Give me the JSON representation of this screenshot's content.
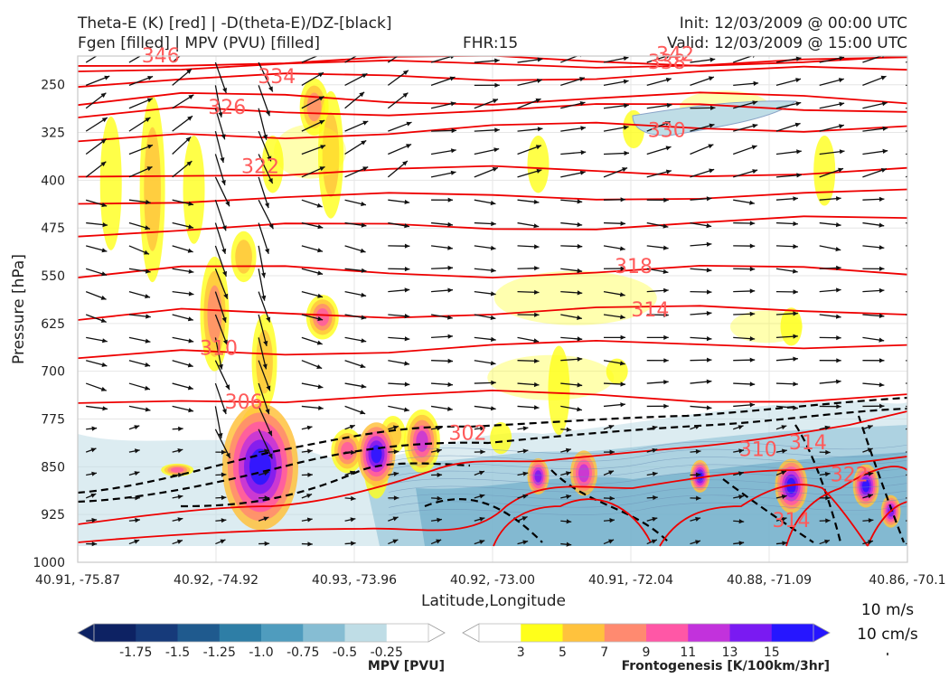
{
  "header": {
    "left_line1": "Theta-E (K) [red] | -D(theta-E)/DZ-[black]",
    "left_line2": "Fgen [filled] | MPV (PVU) [filled]",
    "center": "FHR:15",
    "right_line1": "Init: 12/03/2009 @ 00:00 UTC",
    "right_line2": "Valid: 12/03/2009 @ 15:00 UTC"
  },
  "chart_data": {
    "type": "cross-section",
    "xlabel": "Latitude,Longitude",
    "ylabel": "Pressure [hPa]",
    "x_ticks": [
      "40.91, -75.87",
      "40.92, -74.92",
      "40.93, -73.96",
      "40.92, -73.00",
      "40.91, -72.04",
      "40.88, -71.09",
      "40.86, -70.1"
    ],
    "y_ticks": [
      250,
      325,
      400,
      475,
      550,
      625,
      700,
      775,
      850,
      925,
      1000
    ],
    "ylim": [
      1000,
      205
    ],
    "y_scale": "linear (inverted)",
    "grid": true,
    "theta_e_contours": {
      "color": "#ee0000",
      "levels": [
        306,
        310,
        314,
        318,
        322,
        326,
        330,
        334,
        338,
        342,
        346
      ],
      "labels": [
        {
          "text": "346",
          "x": 0.1,
          "p": 212
        },
        {
          "text": "338",
          "x": 0.71,
          "p": 222
        },
        {
          "text": "342",
          "x": 0.72,
          "p": 210
        },
        {
          "text": "334",
          "x": 0.24,
          "p": 245
        },
        {
          "text": "326",
          "x": 0.18,
          "p": 293
        },
        {
          "text": "330",
          "x": 0.71,
          "p": 329
        },
        {
          "text": "322",
          "x": 0.22,
          "p": 386
        },
        {
          "text": "318",
          "x": 0.67,
          "p": 543
        },
        {
          "text": "314",
          "x": 0.69,
          "p": 611
        },
        {
          "text": "310",
          "x": 0.17,
          "p": 671
        },
        {
          "text": "306",
          "x": 0.2,
          "p": 756
        },
        {
          "text": "302",
          "x": 0.47,
          "p": 805
        },
        {
          "text": "310",
          "x": 0.82,
          "p": 830
        },
        {
          "text": "314",
          "x": 0.88,
          "p": 820
        },
        {
          "text": "314",
          "x": 0.86,
          "p": 942
        },
        {
          "text": "322",
          "x": 0.93,
          "p": 870
        }
      ]
    },
    "colorbars": [
      {
        "title": "MPV [PVU]",
        "ticks": [
          "-1.75",
          "-1.5",
          "-1.25",
          "-1.0",
          "-0.75",
          "-0.5",
          "-0.25"
        ],
        "colors": [
          "#0d2263",
          "#163a7a",
          "#1f5a8e",
          "#2e7ea6",
          "#4f9cbe",
          "#86bdd3",
          "#bfdde6",
          "#ffffff"
        ]
      },
      {
        "title": "Frontogenesis [K/100km/3hr]",
        "ticks": [
          "3",
          "5",
          "7",
          "9",
          "11",
          "13",
          "15"
        ],
        "colors": [
          "#ffffff",
          "#ffff1a",
          "#ffc23d",
          "#ff8a70",
          "#ff57a6",
          "#c232dc",
          "#7a1af2",
          "#2616ff"
        ]
      }
    ],
    "wind_key": {
      "line1": "10 m/s",
      "line2": "10 cm/s"
    }
  }
}
